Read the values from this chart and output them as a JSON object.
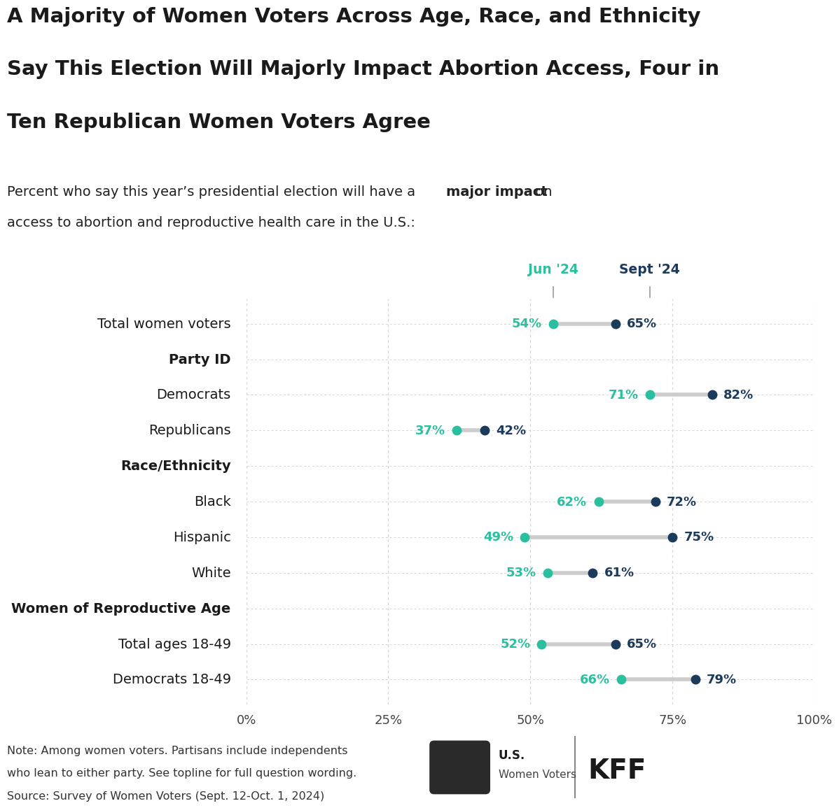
{
  "title_lines": [
    "A Majority of Women Voters Across Age, Race, and Ethnicity",
    "Say This Election Will Majorly Impact Abortion Access, Four in",
    "Ten Republican Women Voters Agree"
  ],
  "subtitle_part1": "Percent who say this year’s presidential election will have a ",
  "subtitle_bold": "major impact",
  "subtitle_part2": " on",
  "subtitle_line2": "access to abortion and reproductive health care in the U.S.:",
  "col_header_jun": "Jun '24",
  "col_header_sep": "Sept '24",
  "categories": [
    "Total women voters",
    "Party ID",
    "Democrats",
    "Republicans",
    "Race/Ethnicity",
    "Black",
    "Hispanic",
    "White",
    "Women of Reproductive Age",
    "Total ages 18-49",
    "Democrats 18-49"
  ],
  "bold_rows": [
    "Party ID",
    "Race/Ethnicity",
    "Women of Reproductive Age"
  ],
  "jun_values": [
    54,
    null,
    71,
    37,
    null,
    62,
    49,
    53,
    null,
    52,
    66
  ],
  "sep_values": [
    65,
    null,
    82,
    42,
    null,
    72,
    75,
    61,
    null,
    65,
    79
  ],
  "color_jun": "#2abf9e",
  "color_sep": "#1b3a5c",
  "color_line": "#cccccc",
  "color_grid": "#d5d5d5",
  "xlim": [
    0,
    100
  ],
  "xticks": [
    0,
    25,
    50,
    75,
    100
  ],
  "xtick_labels": [
    "0%",
    "25%",
    "50%",
    "75%",
    "100%"
  ],
  "note_line1": "Note: Among women voters. Partisans include independents",
  "note_line2": "who lean to either party. See topline for full question wording.",
  "note_line3": "Source: Survey of Women Voters (Sept. 12-Oct. 1, 2024)",
  "background_color": "#ffffff",
  "dot_size": 100,
  "title_fontsize": 21,
  "subtitle_fontsize": 14,
  "label_fontsize": 13,
  "row_label_fontsize": 14,
  "pct_fontsize": 13,
  "note_fontsize": 11.5
}
